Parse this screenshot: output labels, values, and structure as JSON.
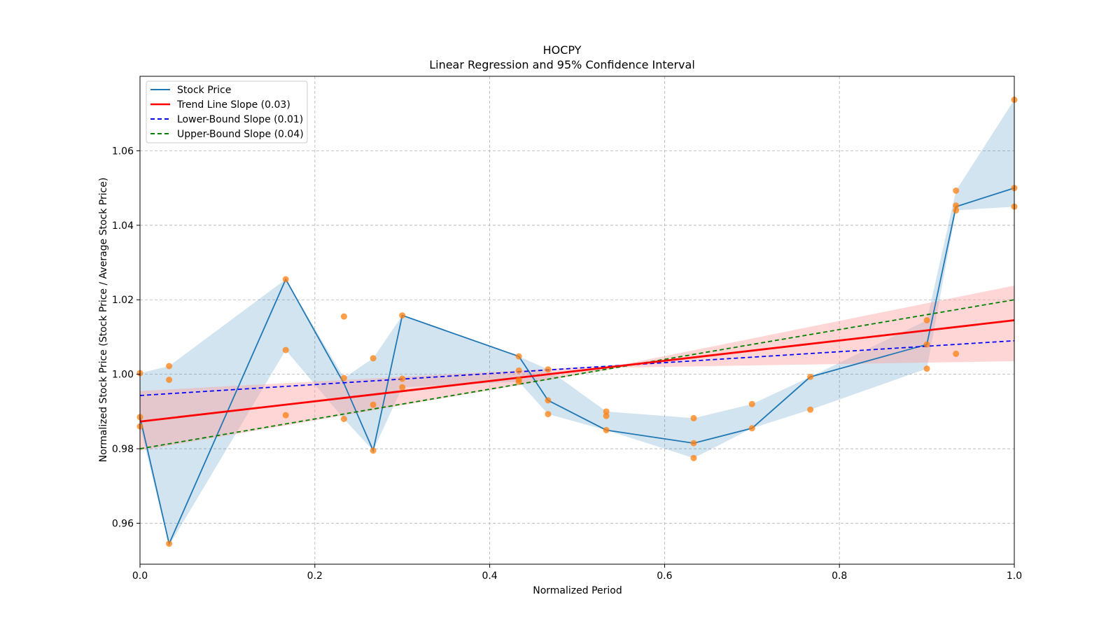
{
  "chart_data": {
    "type": "line",
    "title": "HOCPY",
    "subtitle": "Linear Regression and 95% Confidence Interval",
    "xlabel": "Normalized Period",
    "ylabel": "Normalized Stock Price (Stock Price / Average Stock Price)",
    "xlim": [
      0,
      1
    ],
    "ylim": [
      0.949,
      1.08
    ],
    "xticks": [
      0.0,
      0.2,
      0.4,
      0.6,
      0.8,
      1.0
    ],
    "xtick_labels": [
      "0.0",
      "0.2",
      "0.4",
      "0.6",
      "0.8",
      "1.0"
    ],
    "yticks": [
      0.96,
      0.98,
      1.0,
      1.02,
      1.04,
      1.06
    ],
    "ytick_labels": [
      "0.96",
      "0.98",
      "1.00",
      "1.02",
      "1.04",
      "1.06"
    ],
    "grid": true,
    "legend_position": "top-left",
    "colors": {
      "stock": "#1f77b4",
      "band": "#1f77b4",
      "trend": "#ff0000",
      "trend_band": "#ff9999",
      "lower": "#0000ff",
      "upper": "#008000",
      "scatter": "#ff7f0e"
    },
    "legend": [
      {
        "label": "Stock Price",
        "key": "stock",
        "dash": false
      },
      {
        "label": "Trend Line Slope (0.03)",
        "key": "trend",
        "dash": false
      },
      {
        "label": "Lower-Bound Slope (0.01)",
        "key": "lower",
        "dash": true
      },
      {
        "label": "Upper-Bound Slope (0.04)",
        "key": "upper",
        "dash": true
      }
    ],
    "stock_price": {
      "x": [
        0.0,
        0.0333,
        0.1667,
        0.2333,
        0.2667,
        0.3,
        0.4333,
        0.4667,
        0.5333,
        0.6333,
        0.7,
        0.7667,
        0.9,
        0.9333,
        1.0
      ],
      "y": [
        0.9885,
        0.9545,
        1.0255,
        0.9975,
        0.9795,
        1.0158,
        1.0048,
        0.993,
        0.985,
        0.9815,
        0.9855,
        0.9993,
        1.008,
        1.045,
        1.05
      ],
      "band_lower": [
        0.986,
        0.954,
        1.0065,
        0.988,
        0.9795,
        0.9965,
        0.998,
        0.9893,
        0.985,
        0.9775,
        0.9855,
        0.9905,
        1.0015,
        1.044,
        1.045
      ],
      "band_upper": [
        1.0003,
        1.0022,
        1.0255,
        0.999,
        1.0043,
        1.0158,
        1.0048,
        1.0013,
        0.99,
        0.9882,
        0.992,
        0.9993,
        1.0145,
        1.0493,
        1.0737
      ]
    },
    "scatter_points": {
      "x": [
        0.0,
        0.0,
        0.0,
        0.0333,
        0.0333,
        0.0333,
        0.1667,
        0.1667,
        0.1667,
        0.2333,
        0.2333,
        0.2333,
        0.2667,
        0.2667,
        0.2667,
        0.3,
        0.3,
        0.3,
        0.4333,
        0.4333,
        0.4333,
        0.4333,
        0.4667,
        0.4667,
        0.4667,
        0.5333,
        0.5333,
        0.5333,
        0.6333,
        0.6333,
        0.6333,
        0.7,
        0.7,
        0.7667,
        0.7667,
        0.9,
        0.9,
        0.9,
        0.9333,
        0.9333,
        0.9333,
        0.9333,
        1.0,
        1.0,
        1.0
      ],
      "y": [
        1.0003,
        0.9885,
        0.986,
        1.0022,
        0.9985,
        0.9545,
        1.0255,
        1.0065,
        0.989,
        1.0155,
        0.999,
        0.988,
        1.0043,
        0.9918,
        0.9795,
        1.0158,
        0.9988,
        0.9965,
        1.0048,
        1.001,
        0.998,
        0.9985,
        1.0013,
        0.993,
        0.9893,
        0.99,
        0.9888,
        0.985,
        0.9882,
        0.9815,
        0.9775,
        0.992,
        0.9855,
        0.9993,
        0.9905,
        1.0145,
        1.008,
        1.0015,
        1.0493,
        1.0453,
        1.044,
        1.0055,
        1.0737,
        1.05,
        1.045
      ]
    },
    "trend_line": {
      "x": [
        0,
        1
      ],
      "y": [
        0.9873,
        1.0145
      ]
    },
    "trend_band": {
      "x": [
        0,
        0.55,
        1
      ],
      "lower": [
        0.9795,
        1.0018,
        1.0035
      ],
      "upper": [
        0.9955,
        1.0025,
        1.0238
      ]
    },
    "lower_bound_line": {
      "x": [
        0,
        1
      ],
      "y": [
        0.9943,
        1.009
      ]
    },
    "upper_bound_line": {
      "x": [
        0,
        1
      ],
      "y": [
        0.98,
        1.02
      ]
    }
  }
}
